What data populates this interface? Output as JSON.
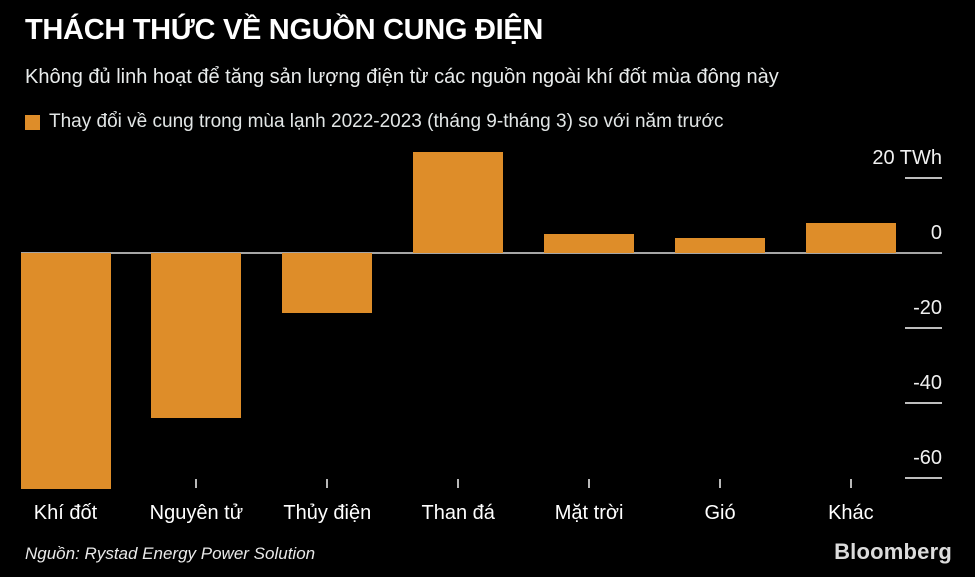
{
  "header": {
    "title": "THÁCH THỨC VỀ NGUỒN CUNG ĐIỆN",
    "subtitle": "Không đủ linh hoạt để tăng sản lượng điện từ các nguồn ngoài khí đốt mùa đông này"
  },
  "legend": {
    "label": "Thay đổi về cung trong mùa lạnh 2022-2023 (tháng 9-tháng 3) so với năm trước",
    "swatch_color": "#DE8D29"
  },
  "chart_data": {
    "type": "bar",
    "categories": [
      "Khí đốt",
      "Nguyên tử",
      "Thủy điện",
      "Than đá",
      "Mặt trời",
      "Gió",
      "Khác"
    ],
    "values": [
      -63,
      -44,
      -16,
      27,
      5,
      4,
      8
    ],
    "unit": "TWh",
    "y_ticks": [
      {
        "label": "20 TWh",
        "value": 20
      },
      {
        "label": "0",
        "value": 0
      },
      {
        "label": "-20",
        "value": -20
      },
      {
        "label": "-40",
        "value": -40
      },
      {
        "label": "-60",
        "value": -60
      }
    ],
    "ylim": [
      -70,
      30
    ],
    "bar_color": "#DE8D29",
    "zero_line_color": "#A6A6A6",
    "tick_color": "#BDBDBD",
    "grid": false,
    "legend_position": "top-left",
    "value_axis_side": "right"
  },
  "footer": {
    "source": "Nguồn: Rystad Energy Power Solution",
    "logo": "Bloomberg"
  },
  "colors": {
    "background": "#000000",
    "title_text": "#FFFFFF",
    "body_text": "#E9ECEC"
  }
}
